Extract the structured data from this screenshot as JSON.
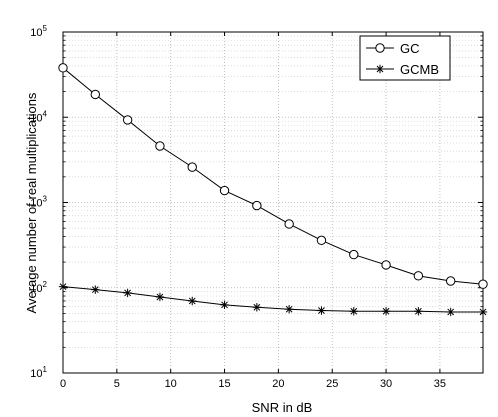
{
  "chart_data": {
    "type": "line",
    "title": "",
    "xlabel": "SNR in dB",
    "ylabel": "Average number of real multiplications",
    "xlim": [
      0,
      39
    ],
    "ylim": [
      10,
      100000
    ],
    "yscale": "log",
    "grid": true,
    "legend_position": "top-right",
    "x_ticks": [
      "0",
      "5",
      "10",
      "15",
      "20",
      "25",
      "30",
      "35"
    ],
    "y_ticks": [
      {
        "base": "10",
        "exp": "1"
      },
      {
        "base": "10",
        "exp": "2"
      },
      {
        "base": "10",
        "exp": "3"
      },
      {
        "base": "10",
        "exp": "4"
      },
      {
        "base": "10",
        "exp": "5"
      }
    ],
    "x": [
      0,
      3,
      6,
      9,
      12,
      15,
      18,
      21,
      24,
      27,
      30,
      33,
      36,
      39
    ],
    "series": [
      {
        "name": "GC",
        "marker": "circle",
        "values": [
          38000,
          18500,
          9300,
          4600,
          2600,
          1380,
          920,
          560,
          360,
          245,
          185,
          138,
          120,
          110
        ]
      },
      {
        "name": "GCMB",
        "marker": "asterisk",
        "values": [
          103,
          95,
          87,
          78,
          70,
          63,
          59,
          56,
          54,
          53,
          53,
          53,
          52,
          52
        ]
      }
    ]
  }
}
